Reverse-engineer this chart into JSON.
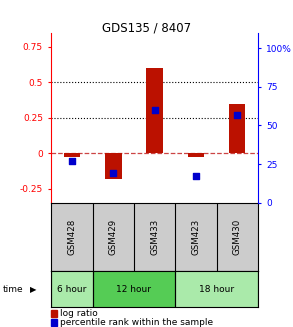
{
  "title": "GDS135 / 8407",
  "samples": [
    "GSM428",
    "GSM429",
    "GSM433",
    "GSM423",
    "GSM430"
  ],
  "log_ratios": [
    -0.03,
    -0.18,
    0.6,
    -0.03,
    0.35
  ],
  "percentile_ranks_pct": [
    27,
    19,
    60,
    17,
    57
  ],
  "time_groups": [
    {
      "label": "6 hour",
      "start": 0,
      "end": 1,
      "color": "#aaeaaa"
    },
    {
      "label": "12 hour",
      "start": 1,
      "end": 3,
      "color": "#55cc55"
    },
    {
      "label": "18 hour",
      "start": 3,
      "end": 5,
      "color": "#aaeaaa"
    }
  ],
  "ylim_left": [
    -0.35,
    0.85
  ],
  "ylim_right": [
    0,
    110
  ],
  "yticks_left": [
    -0.25,
    0,
    0.25,
    0.5,
    0.75
  ],
  "yticks_right": [
    0,
    25,
    50,
    75,
    100
  ],
  "ytick_labels_left": [
    "-0.25",
    "0",
    "0.25",
    "0.5",
    "0.75"
  ],
  "ytick_labels_right": [
    "0",
    "25",
    "50",
    "75",
    "100%"
  ],
  "hlines": [
    0.25,
    0.5
  ],
  "bar_color": "#bb1100",
  "dot_color": "#0000cc",
  "sample_bg": "#cccccc",
  "legend_bar_label": "log ratio",
  "legend_dot_label": "percentile rank within the sample",
  "time_label": "time",
  "zero_line_color": "#cc4444",
  "bar_width": 0.4
}
